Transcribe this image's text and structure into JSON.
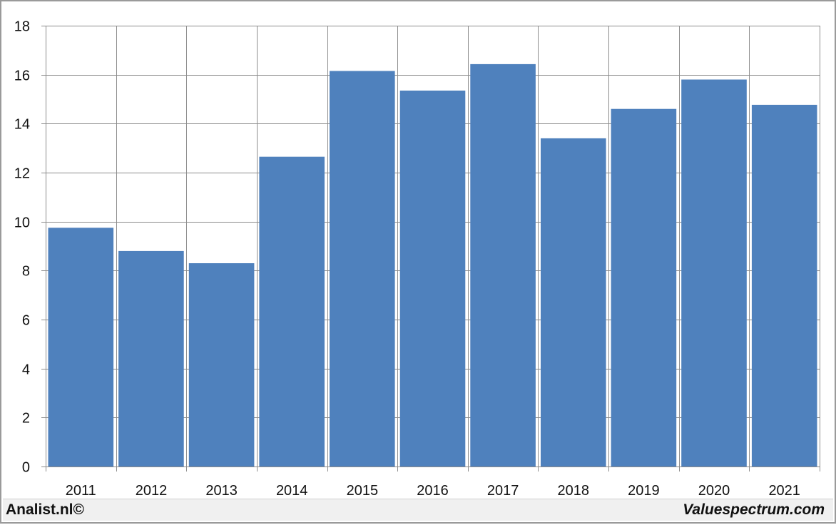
{
  "chart_data": {
    "type": "bar",
    "categories": [
      "2011",
      "2012",
      "2013",
      "2014",
      "2015",
      "2016",
      "2017",
      "2018",
      "2019",
      "2020",
      "2021"
    ],
    "values": [
      9.75,
      8.8,
      8.3,
      12.65,
      16.15,
      15.35,
      16.43,
      13.4,
      14.6,
      15.8,
      14.77
    ],
    "title": "",
    "xlabel": "",
    "ylabel": "",
    "ylim": [
      0,
      18
    ],
    "yticks": [
      0,
      2,
      4,
      6,
      8,
      10,
      12,
      14,
      16,
      18
    ],
    "grid": true,
    "legend": "none",
    "colors": {
      "bar": "#4f81bd",
      "grid": "#8c8c8c",
      "axis": "#8c8c8c"
    }
  },
  "footer": {
    "left_text": "Analist.nl©",
    "right_text": "Valuespectrum.com"
  }
}
